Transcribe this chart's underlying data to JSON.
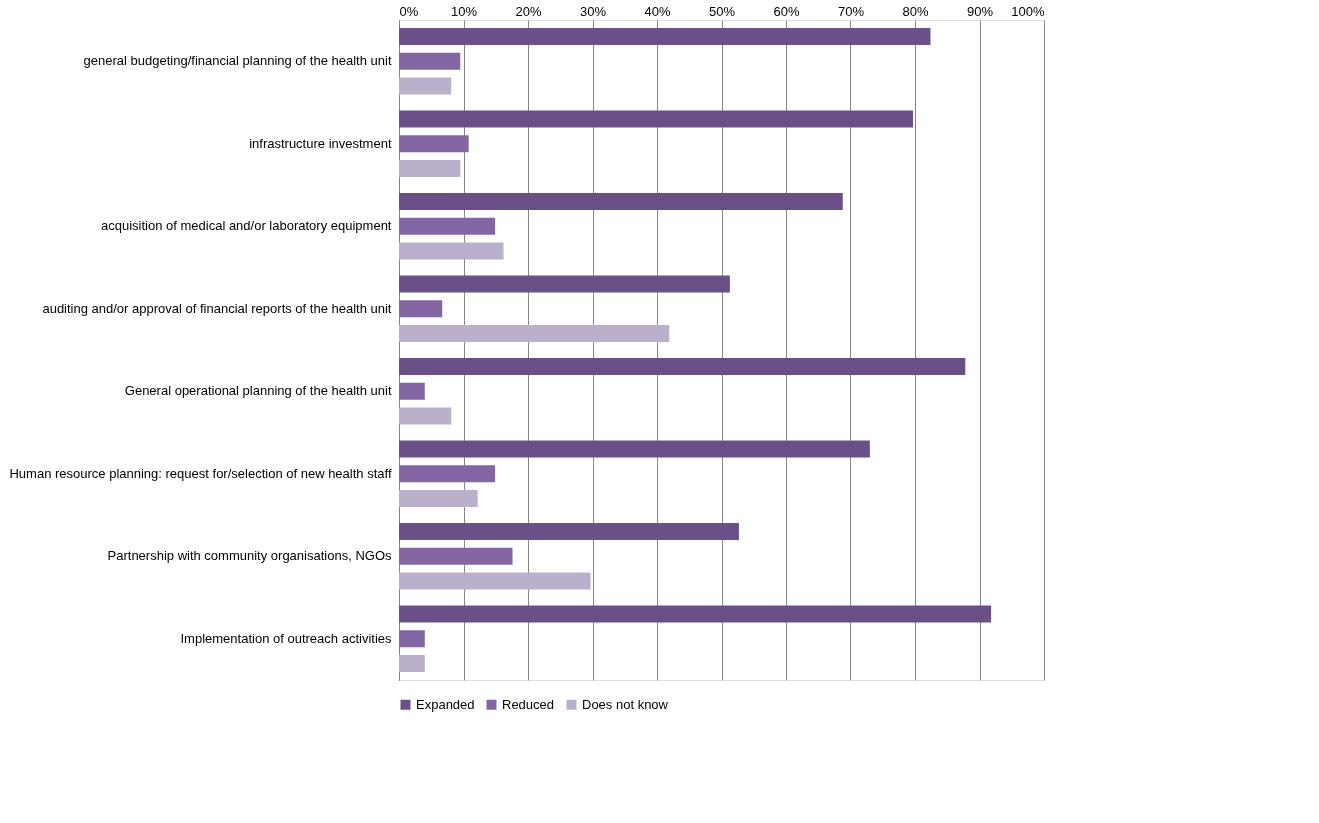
{
  "chart_data": {
    "type": "bar",
    "orientation": "horizontal",
    "categories": [
      "general budgeting/financial planning of the health unit",
      "infrastructure investment",
      "acquisition of medical and/or laboratory equipment",
      "auditing and/or approval of financial reports of the health unit",
      "General operational planning of the health unit",
      "Human resource planning: request for/selection of  new health staff",
      "Partnership with community organisations, NGOs",
      "Implementation of outreach activities"
    ],
    "series": [
      {
        "name": "Expanded",
        "color": "#6a5086",
        "values": [
          82.4,
          79.7,
          68.8,
          51.3,
          87.8,
          73.0,
          52.7,
          91.8
        ]
      },
      {
        "name": "Reduced",
        "color": "#8466a4",
        "values": [
          9.5,
          10.8,
          14.9,
          6.7,
          4.0,
          14.9,
          17.6,
          4.0
        ]
      },
      {
        "name": "Does not know",
        "color": "#bbb0cc",
        "values": [
          8.1,
          9.5,
          16.2,
          41.9,
          8.1,
          12.2,
          29.7,
          4.0
        ]
      }
    ],
    "xlim": [
      0,
      100
    ],
    "xticks": [
      {
        "value": 0,
        "label": "0%"
      },
      {
        "value": 10,
        "label": "10%"
      },
      {
        "value": 20,
        "label": "20%"
      },
      {
        "value": 30,
        "label": "30%"
      },
      {
        "value": 40,
        "label": "40%"
      },
      {
        "value": 50,
        "label": "50%"
      },
      {
        "value": 60,
        "label": "60%"
      },
      {
        "value": 70,
        "label": "70%"
      },
      {
        "value": 80,
        "label": "80%"
      },
      {
        "value": 90,
        "label": "90%"
      },
      {
        "value": 100,
        "label": "100%"
      }
    ],
    "grid": "x",
    "legend": "bottom"
  }
}
